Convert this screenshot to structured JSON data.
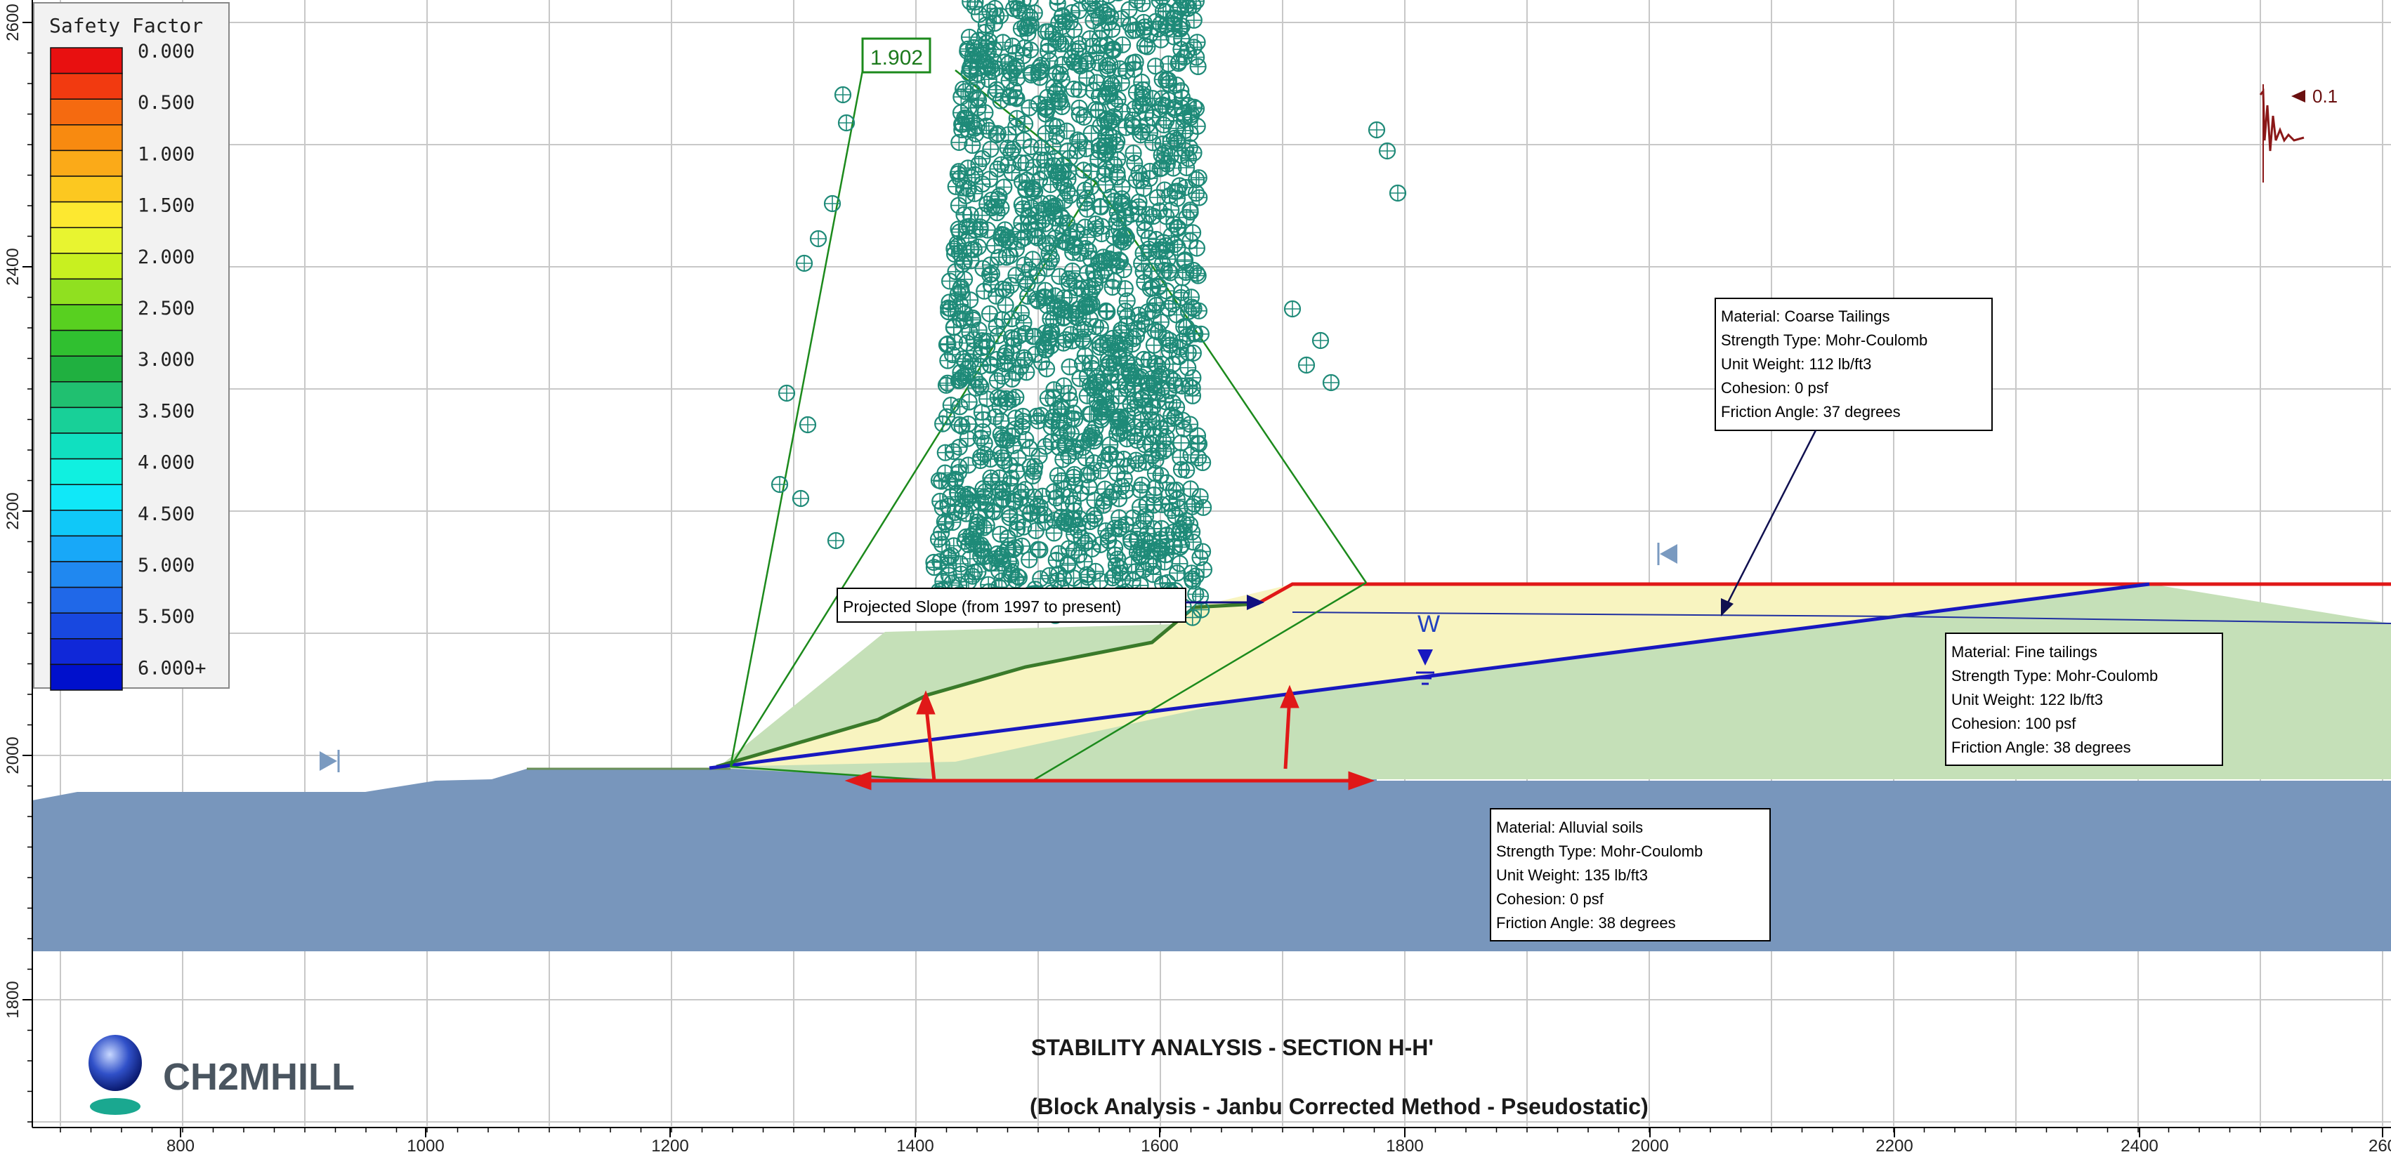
{
  "legend": {
    "title": "Safety Factor",
    "items": [
      {
        "label": "0.000",
        "color": "#e81010"
      },
      {
        "label": "",
        "color": "#f23a10"
      },
      {
        "label": "0.500",
        "color": "#f56a10"
      },
      {
        "label": "",
        "color": "#f88a10"
      },
      {
        "label": "1.000",
        "color": "#fbaa18"
      },
      {
        "label": "",
        "color": "#fcc820"
      },
      {
        "label": "1.500",
        "color": "#fde830"
      },
      {
        "label": "",
        "color": "#e8f430"
      },
      {
        "label": "2.000",
        "color": "#c8f020"
      },
      {
        "label": "",
        "color": "#90e020"
      },
      {
        "label": "2.500",
        "color": "#58d020"
      },
      {
        "label": "",
        "color": "#30c030"
      },
      {
        "label": "3.000",
        "color": "#20b040"
      },
      {
        "label": "",
        "color": "#20c070"
      },
      {
        "label": "3.500",
        "color": "#18d098"
      },
      {
        "label": "",
        "color": "#10e0c0"
      },
      {
        "label": "4.000",
        "color": "#10f0e0"
      },
      {
        "label": "",
        "color": "#10e8f8"
      },
      {
        "label": "4.500",
        "color": "#10c8f8"
      },
      {
        "label": "",
        "color": "#18a8f8"
      },
      {
        "label": "5.000",
        "color": "#2088f0"
      },
      {
        "label": "",
        "color": "#2068e8"
      },
      {
        "label": "5.500",
        "color": "#1848e0"
      },
      {
        "label": "",
        "color": "#1028d8"
      },
      {
        "label": "6.000+",
        "color": "#0010cc"
      }
    ]
  },
  "x_axis_ticks": [
    "800",
    "1000",
    "1200",
    "1400",
    "1600",
    "1800",
    "2000",
    "2200",
    "2400",
    "260"
  ],
  "y_axis_ticks": [
    "2600",
    "2400",
    "2200",
    "2000",
    "1800"
  ],
  "min_safety_factor": "1.902",
  "seismic_label": "0.1",
  "water_label": "W",
  "annotation_slope": "Projected Slope (from 1997 to present)",
  "materials": [
    {
      "name": "Material: Coarse Tailings",
      "strength": "Strength Type: Mohr-Coulomb",
      "unit_weight": "Unit Weight: 112 lb/ft3",
      "cohesion": "Cohesion: 0 psf",
      "friction": "Friction Angle: 37 degrees",
      "color": "#f8f4c0"
    },
    {
      "name": "Material: Fine tailings",
      "strength": "Strength Type: Mohr-Coulomb",
      "unit_weight": "Unit Weight: 122 lb/ft3",
      "cohesion": "Cohesion: 100 psf",
      "friction": "Friction Angle: 38 degrees",
      "color": "#c5e0b8"
    },
    {
      "name": "Material: Alluvial soils",
      "strength": "Strength Type: Mohr-Coulomb",
      "unit_weight": "Unit Weight: 135 lb/ft3",
      "cohesion": "Cohesion: 0 psf",
      "friction": "Friction Angle: 38 degrees",
      "color": "#7896bc"
    }
  ],
  "title": "STABILITY ANALYSIS - SECTION H-H'",
  "subtitle": "(Block Analysis - Janbu Corrected Method - Pseudostatic)",
  "logo_text": "CH2MHILL",
  "colors": {
    "grid": "#c8c8c8",
    "slip_center": "#1e8a78",
    "water_table": "#1818c0",
    "slope_red": "#e01818",
    "search_line": "#1c8a1c"
  }
}
